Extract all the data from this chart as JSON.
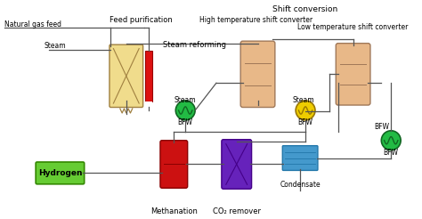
{
  "bg_color": "#ffffff",
  "labels": {
    "natural_gas_feed": "Natural gas feed",
    "feed_purification": "Feed purification",
    "steam_reforming": "Steam reforming",
    "shift_conversion": "Shift conversion",
    "high_temp_shift": "High temperature shift converter",
    "low_temp_shift": "Low temperature shift converter",
    "steam1": "Steam",
    "steam2": "Steam",
    "steam3": "Steam",
    "bfw1": "BFW",
    "bfw2": "BFW",
    "bfw3": "BFW",
    "bfw4": "BFW",
    "methanation": "Methanation",
    "co2_remover": "CO₂ remover",
    "condensate": "Condensate",
    "hydrogen": "Hydrogen"
  },
  "colors": {
    "reformer": "#f0dc8c",
    "reformer_outline": "#a08040",
    "heater_red": "#dd1111",
    "shift_high": "#e8b888",
    "shift_low": "#e8b888",
    "hx_green_fill": "#22bb44",
    "hx_green_outline": "#116622",
    "hx_yellow_fill": "#eecc00",
    "hx_yellow_outline": "#997700",
    "meth_red": "#cc1111",
    "co2_purple": "#6622bb",
    "cond_blue": "#4499cc",
    "cond_outline": "#2277aa",
    "hyd_green": "#66cc33",
    "hyd_outline": "#338800",
    "line": "#555555"
  },
  "figsize": [
    4.74,
    2.46
  ],
  "dpi": 100
}
